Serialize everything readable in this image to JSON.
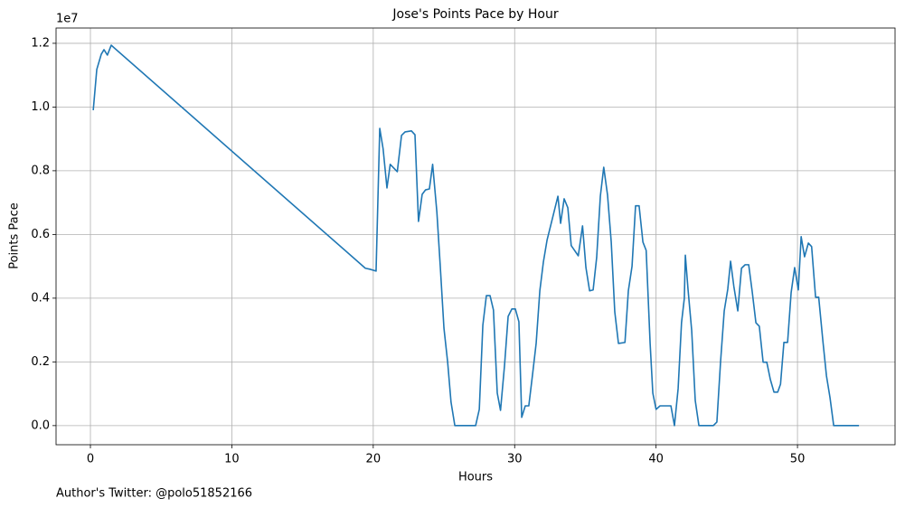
{
  "chart_data": {
    "type": "line",
    "title": "Jose's Points Pace by Hour",
    "x_label": "Hours",
    "y_label": "Points Pace",
    "y_offset_label": "1e7",
    "footnote": "Author's Twitter: @polo51852166",
    "xlim": [
      -2.43,
      56.9
    ],
    "ylim": [
      -0.06,
      1.248
    ],
    "xticks": [
      0,
      10,
      20,
      30,
      40,
      50
    ],
    "yticks": [
      {
        "value": 0,
        "label": "0.0"
      },
      0.2,
      0.4,
      0.6,
      0.8,
      {
        "value": 1,
        "label": "1.0"
      },
      1.2
    ],
    "grid": true,
    "series": [
      {
        "color": "#1f77b4",
        "x": [
          0.2,
          0.45,
          0.77,
          0.96,
          1.2,
          1.47,
          19.44,
          19.76,
          20.2,
          20.46,
          20.7,
          20.97,
          21.2,
          21.7,
          22.0,
          22.25,
          22.7,
          22.95,
          23.2,
          23.46,
          23.7,
          23.97,
          24.2,
          24.5,
          24.74,
          25.0,
          25.26,
          25.5,
          25.77,
          26.2,
          26.7,
          27.24,
          27.5,
          27.75,
          28.0,
          28.26,
          28.5,
          28.77,
          29.0,
          29.28,
          29.54,
          29.8,
          30.05,
          30.3,
          30.5,
          30.75,
          31.0,
          31.27,
          31.52,
          31.78,
          32.03,
          32.29,
          33.06,
          33.25,
          33.5,
          33.76,
          34.0,
          34.5,
          34.8,
          35.04,
          35.3,
          35.55,
          35.8,
          36.06,
          36.3,
          36.57,
          36.83,
          37.08,
          37.34,
          37.8,
          38.04,
          38.3,
          38.55,
          38.8,
          39.07,
          39.3,
          39.58,
          39.77,
          40.0,
          40.28,
          40.8,
          41.05,
          41.3,
          41.56,
          41.8,
          42.0,
          42.07,
          42.26,
          42.52,
          42.77,
          43.03,
          43.54,
          44.05,
          44.3,
          44.56,
          44.82,
          45.07,
          45.27,
          45.5,
          45.78,
          46.04,
          46.3,
          46.55,
          46.8,
          47.06,
          47.3,
          47.57,
          47.83,
          48.08,
          48.34,
          48.6,
          48.8,
          49.04,
          49.3,
          49.55,
          49.8,
          50.06,
          50.26,
          50.5,
          50.77,
          51.0,
          51.28,
          51.5,
          51.8,
          52.05,
          52.3,
          52.56,
          53.07,
          53.7,
          54.35
        ],
        "values": [
          0.99,
          1.118,
          1.166,
          1.18,
          1.163,
          1.194,
          0.494,
          0.491,
          0.485,
          0.933,
          0.868,
          0.746,
          0.82,
          0.797,
          0.911,
          0.922,
          0.925,
          0.913,
          0.641,
          0.726,
          0.74,
          0.743,
          0.82,
          0.67,
          0.5,
          0.306,
          0.2,
          0.074,
          0,
          0,
          0,
          0,
          0.051,
          0.315,
          0.408,
          0.408,
          0.363,
          0.102,
          0.048,
          0.187,
          0.343,
          0.366,
          0.366,
          0.326,
          0.026,
          0.062,
          0.062,
          0.162,
          0.258,
          0.423,
          0.513,
          0.582,
          0.72,
          0.635,
          0.712,
          0.684,
          0.565,
          0.533,
          0.627,
          0.496,
          0.423,
          0.426,
          0.528,
          0.72,
          0.811,
          0.723,
          0.576,
          0.357,
          0.258,
          0.261,
          0.423,
          0.5,
          0.69,
          0.69,
          0.576,
          0.55,
          0.258,
          0.102,
          0.051,
          0.062,
          0.062,
          0.062,
          0,
          0.116,
          0.323,
          0.4,
          0.535,
          0.428,
          0.298,
          0.079,
          0,
          0,
          0,
          0.011,
          0.2,
          0.36,
          0.428,
          0.516,
          0.437,
          0.36,
          0.494,
          0.505,
          0.505,
          0.42,
          0.323,
          0.312,
          0.199,
          0.199,
          0.145,
          0.105,
          0.105,
          0.13,
          0.261,
          0.261,
          0.417,
          0.496,
          0.426,
          0.593,
          0.53,
          0.573,
          0.562,
          0.403,
          0.403,
          0.264,
          0.156,
          0.088,
          0,
          0,
          0,
          0
        ]
      }
    ]
  }
}
